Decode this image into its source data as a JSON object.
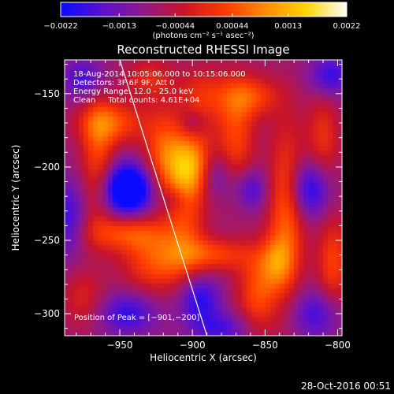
{
  "colorbar": {
    "ticks": [
      "-0.0022",
      "-0.0013",
      "-0.00044",
      "0.00044",
      "0.0013",
      "0.0022"
    ],
    "tick_values": [
      -0.0022,
      -0.0013,
      -0.00044,
      0.00044,
      0.0013,
      0.0022
    ],
    "range": [
      -0.0022,
      0.0022
    ],
    "units": "(photons cm⁻² s⁻¹ asec⁻²)",
    "colors": [
      "#0a0aff",
      "#5a10d0",
      "#8f1a8a",
      "#c8142a",
      "#ff3a00",
      "#ff8a00",
      "#ffd400",
      "#ffffff"
    ]
  },
  "chart_data": {
    "type": "heatmap",
    "title": "Reconstructed RHESSI Image",
    "xlabel": "Heliocentric X (arcsec)",
    "ylabel": "Heliocentric Y (arcsec)",
    "xlim": [
      -988,
      -797
    ],
    "ylim": [
      -315,
      -127
    ],
    "x_ticks": [
      -950,
      -900,
      -850,
      -800
    ],
    "y_ticks": [
      -150,
      -200,
      -250,
      -300
    ],
    "x_tick_labels": [
      "−950",
      "−900",
      "−850",
      "−800"
    ],
    "y_tick_labels": [
      "−150",
      "−200",
      "−250",
      "−300"
    ],
    "limb_line": [
      [
        -950,
        -127
      ],
      [
        -890,
        -315
      ]
    ],
    "sources": [
      {
        "x": -901,
        "y": -200,
        "sx": 12,
        "sy": 16,
        "a": 0.0022
      },
      {
        "x": -920,
        "y": -188,
        "sx": 10,
        "sy": 20,
        "a": 0.0011
      },
      {
        "x": -955,
        "y": -170,
        "sx": 16,
        "sy": 10,
        "a": 0.0012
      },
      {
        "x": -965,
        "y": -195,
        "sx": 8,
        "sy": 30,
        "a": 0.0011
      },
      {
        "x": -945,
        "y": -245,
        "sx": 20,
        "sy": 9,
        "a": 0.0012
      },
      {
        "x": -925,
        "y": -265,
        "sx": 16,
        "sy": 14,
        "a": 0.0012
      },
      {
        "x": -905,
        "y": -243,
        "sx": 10,
        "sy": 22,
        "a": 0.0009
      },
      {
        "x": -885,
        "y": -260,
        "sx": 18,
        "sy": 8,
        "a": 0.0011
      },
      {
        "x": -930,
        "y": -140,
        "sx": 12,
        "sy": 10,
        "a": 0.0008
      },
      {
        "x": -893,
        "y": -152,
        "sx": 12,
        "sy": 14,
        "a": 0.0009
      },
      {
        "x": -870,
        "y": -180,
        "sx": 9,
        "sy": 25,
        "a": 0.0011
      },
      {
        "x": -860,
        "y": -152,
        "sx": 14,
        "sy": 10,
        "a": 0.0011
      },
      {
        "x": -835,
        "y": -230,
        "sx": 9,
        "sy": 40,
        "a": 0.0014
      },
      {
        "x": -855,
        "y": -285,
        "sx": 10,
        "sy": 20,
        "a": 0.0012
      },
      {
        "x": -842,
        "y": -265,
        "sx": 8,
        "sy": 12,
        "a": 0.001
      },
      {
        "x": -803,
        "y": -265,
        "sx": 8,
        "sy": 22,
        "a": 0.0011
      },
      {
        "x": -810,
        "y": -180,
        "sx": 8,
        "sy": 20,
        "a": 0.0009
      },
      {
        "x": -975,
        "y": -290,
        "sx": 10,
        "sy": 14,
        "a": 0.0007
      },
      {
        "x": -945,
        "y": -215,
        "sx": 12,
        "sy": 12,
        "a": -0.0025
      },
      {
        "x": -885,
        "y": -205,
        "sx": 9,
        "sy": 12,
        "a": -0.0011
      },
      {
        "x": -820,
        "y": -215,
        "sx": 10,
        "sy": 14,
        "a": -0.0014
      },
      {
        "x": -895,
        "y": -290,
        "sx": 10,
        "sy": 12,
        "a": -0.0012
      },
      {
        "x": -945,
        "y": -300,
        "sx": 14,
        "sy": 10,
        "a": -0.0011
      },
      {
        "x": -805,
        "y": -138,
        "sx": 10,
        "sy": 10,
        "a": -0.0011
      },
      {
        "x": -975,
        "y": -140,
        "sx": 10,
        "sy": 10,
        "a": -0.001
      },
      {
        "x": -815,
        "y": -300,
        "sx": 12,
        "sy": 12,
        "a": -0.001
      },
      {
        "x": -860,
        "y": -215,
        "sx": 8,
        "sy": 10,
        "a": -0.001
      },
      {
        "x": -900,
        "y": -170,
        "sx": 6,
        "sy": 6,
        "a": -0.0005
      },
      {
        "x": -880,
        "y": -310,
        "sx": 14,
        "sy": 8,
        "a": -0.0009
      },
      {
        "x": -985,
        "y": -235,
        "sx": 8,
        "sy": 18,
        "a": -0.001
      },
      {
        "x": -912,
        "y": -222,
        "sx": 6,
        "sy": 6,
        "a": -0.0004
      }
    ],
    "base_level": -0.0008
  },
  "info": {
    "line1": "18-Aug-2014 10:05:06.000 to 10:15:06.000",
    "line2": "Detectors: 3F 6F 9F, Att 0",
    "line3": "Energy Range: 12.0 - 25.0 keV",
    "line4": "Clean     Total counts: 4.61E+04"
  },
  "peak_label": "Position of Peak = [−901,−200]",
  "timestamp": "28-Oct-2016 00:51"
}
